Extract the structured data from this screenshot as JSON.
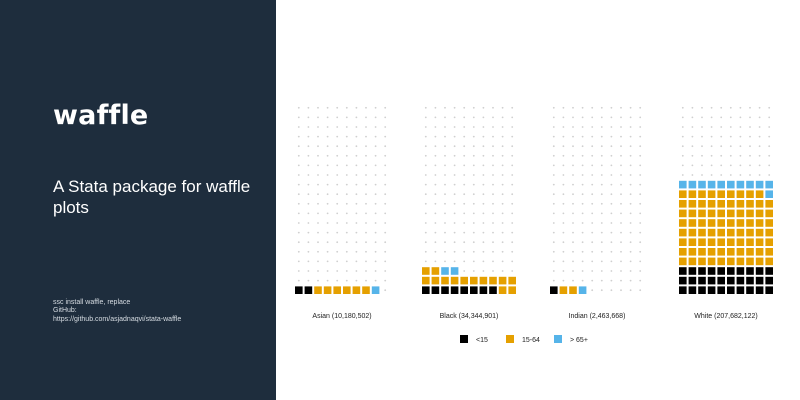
{
  "sidebar": {
    "logo": "waffle",
    "tagline": "A Stata package for waffle plots",
    "install_lines": [
      "ssc install waffle, replace",
      "GitHub:",
      "https://github.com/asjadnaqvi/stata-waffle"
    ]
  },
  "colors": {
    "panel_bg": "#1e2d3d",
    "under_15": "#000000",
    "age_15_64": "#e5a000",
    "over_65": "#56b4e9",
    "empty_dot": "#cfcfcf"
  },
  "chart_data": {
    "type": "waffle",
    "title": "",
    "grid": {
      "rows": 20,
      "cols": 10
    },
    "unit_note": "",
    "categories": [
      {
        "label": "Asian (10,180,502)",
        "under_15": 2,
        "age_15_64": 6,
        "over_65": 1
      },
      {
        "label": "Black (34,344,901)",
        "under_15": 8,
        "age_15_64": 14,
        "over_65": 2
      },
      {
        "label": "Indian (2,463,668)",
        "under_15": 1,
        "age_15_64": 2,
        "over_65": 1
      },
      {
        "label": "White (207,682,122)",
        "under_15": 30,
        "age_15_64": 79,
        "over_65": 11
      }
    ],
    "legend": {
      "position": "bottom",
      "items": [
        {
          "key": "under_15",
          "label": "<15"
        },
        {
          "key": "age_15_64",
          "label": "15-64"
        },
        {
          "key": "over_65",
          "label": "> 65+"
        }
      ]
    }
  }
}
